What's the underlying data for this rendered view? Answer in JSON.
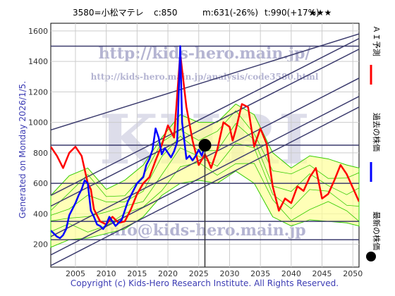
{
  "header": {
    "ticker": "3580=小松マテレ",
    "current": "c:850",
    "medium": "m:631(-26%)",
    "target": "t:990(+17%)",
    "stars": "★★★"
  },
  "side_text": "Generated on Monday 2026/1/5.",
  "copyright": "Copyright (c) Kids-Hero Research Institute. All Rights Reserved.",
  "watermarks": {
    "url1": "http://kids-hero.main.jp/",
    "url2": "http://kids-hero.main.jp/analysis/code3580.html",
    "logo": "KHRI",
    "email": "info@kids-hero.main.jp"
  },
  "legend": {
    "forecast": "ＡＩ予測",
    "past": "過去の株価",
    "latest": "最新の株価"
  },
  "colors": {
    "forecast": "#ff0000",
    "past": "#0000ff",
    "band_fill": "#ffff99",
    "green": "#33cc00",
    "trend": "#3c3c6e",
    "marker": "#000000"
  },
  "chart_data": {
    "type": "line",
    "xlim": [
      2001,
      2051
    ],
    "ylim": [
      50,
      1650
    ],
    "x_ticks": [
      2005,
      2010,
      2015,
      2020,
      2025,
      2030,
      2035,
      2040,
      2045,
      2050
    ],
    "y_ticks": [
      200,
      400,
      600,
      800,
      1000,
      1200,
      1400,
      1600
    ],
    "x_tick_labels": [
      "2005",
      "2010",
      "2015",
      "2020",
      "2025",
      "2030",
      "2035",
      "2040",
      "2045",
      "2050"
    ],
    "y_tick_labels": [
      "200",
      "400",
      "600",
      "800",
      "1000",
      "1200",
      "1400",
      "1600"
    ],
    "grid": true,
    "latest_point": {
      "x": 2026.0,
      "y": 850
    },
    "horizontal_lines": [
      1500,
      850,
      600,
      350,
      230
    ],
    "diagonal_lines": [
      {
        "x": [
          2001,
          2051
        ],
        "y": [
          950,
          1580
        ]
      },
      {
        "x": [
          2001,
          2051
        ],
        "y": [
          520,
          1550
        ]
      },
      {
        "x": [
          2001,
          2051
        ],
        "y": [
          450,
          1480
        ]
      },
      {
        "x": [
          2001,
          2051
        ],
        "y": [
          250,
          1290
        ]
      },
      {
        "x": [
          2001,
          2051
        ],
        "y": [
          130,
          1170
        ]
      },
      {
        "x": [
          2001,
          2051
        ],
        "y": [
          60,
          1100
        ]
      }
    ],
    "series": [
      {
        "name": "過去の株価",
        "color": "#0000ff",
        "x": [
          2001,
          2001.5,
          2002,
          2002.5,
          2003,
          2003.5,
          2004,
          2004.5,
          2005,
          2005.5,
          2006,
          2006.5,
          2007,
          2007.5,
          2008,
          2008.5,
          2009,
          2009.5,
          2010,
          2010.5,
          2011,
          2011.5,
          2012,
          2012.5,
          2013,
          2013.5,
          2014,
          2014.5,
          2015,
          2015.5,
          2016,
          2016.5,
          2017,
          2017.5,
          2018,
          2018.5,
          2019,
          2019.5,
          2020,
          2020.5,
          2021,
          2021.5,
          2022,
          2022.3,
          2022.6,
          2023,
          2023.5,
          2024,
          2024.5,
          2025,
          2025.5,
          2026
        ],
        "values": [
          290,
          270,
          250,
          240,
          260,
          300,
          390,
          430,
          470,
          520,
          560,
          620,
          600,
          420,
          380,
          330,
          320,
          300,
          330,
          380,
          350,
          320,
          340,
          360,
          420,
          480,
          520,
          560,
          600,
          620,
          640,
          720,
          760,
          820,
          960,
          900,
          790,
          830,
          800,
          770,
          810,
          870,
          1500,
          1000,
          900,
          760,
          780,
          750,
          780,
          820,
          780,
          850
        ]
      },
      {
        "name": "ＡＩ予測",
        "color": "#ff0000",
        "x": [
          2001,
          2002,
          2003,
          2004,
          2005,
          2006,
          2007,
          2007.5,
          2008,
          2009,
          2010,
          2011,
          2012,
          2013,
          2014,
          2015,
          2016,
          2017,
          2018,
          2019,
          2020,
          2021,
          2022,
          2023,
          2024,
          2025,
          2026,
          2026.5,
          2027,
          2028,
          2029,
          2030,
          2030.5,
          2031,
          2032,
          2033,
          2034,
          2035,
          2036,
          2037,
          2038,
          2039,
          2040,
          2041,
          2042,
          2043,
          2044,
          2045,
          2046,
          2047,
          2048,
          2049,
          2050,
          2051
        ],
        "values": [
          840,
          780,
          700,
          800,
          840,
          780,
          600,
          560,
          430,
          350,
          330,
          380,
          340,
          350,
          430,
          530,
          600,
          640,
          750,
          850,
          980,
          900,
          1450,
          1100,
          880,
          720,
          790,
          750,
          700,
          820,
          1000,
          970,
          880,
          950,
          1120,
          1100,
          840,
          960,
          860,
          580,
          420,
          500,
          470,
          580,
          550,
          640,
          700,
          500,
          530,
          620,
          720,
          660,
          570,
          480
        ]
      }
    ],
    "band_x": [
      2001,
      2004,
      2007,
      2010,
      2013,
      2016,
      2019,
      2022,
      2025,
      2028,
      2031,
      2034,
      2037,
      2040,
      2043,
      2046,
      2049,
      2051
    ],
    "band_upper": [
      520,
      650,
      700,
      560,
      620,
      720,
      900,
      1050,
      1000,
      1000,
      1120,
      1050,
      800,
      700,
      780,
      760,
      720,
      700
    ],
    "band_lower": [
      180,
      230,
      240,
      270,
      300,
      380,
      520,
      600,
      620,
      600,
      680,
      600,
      380,
      320,
      360,
      350,
      340,
      320
    ]
  }
}
